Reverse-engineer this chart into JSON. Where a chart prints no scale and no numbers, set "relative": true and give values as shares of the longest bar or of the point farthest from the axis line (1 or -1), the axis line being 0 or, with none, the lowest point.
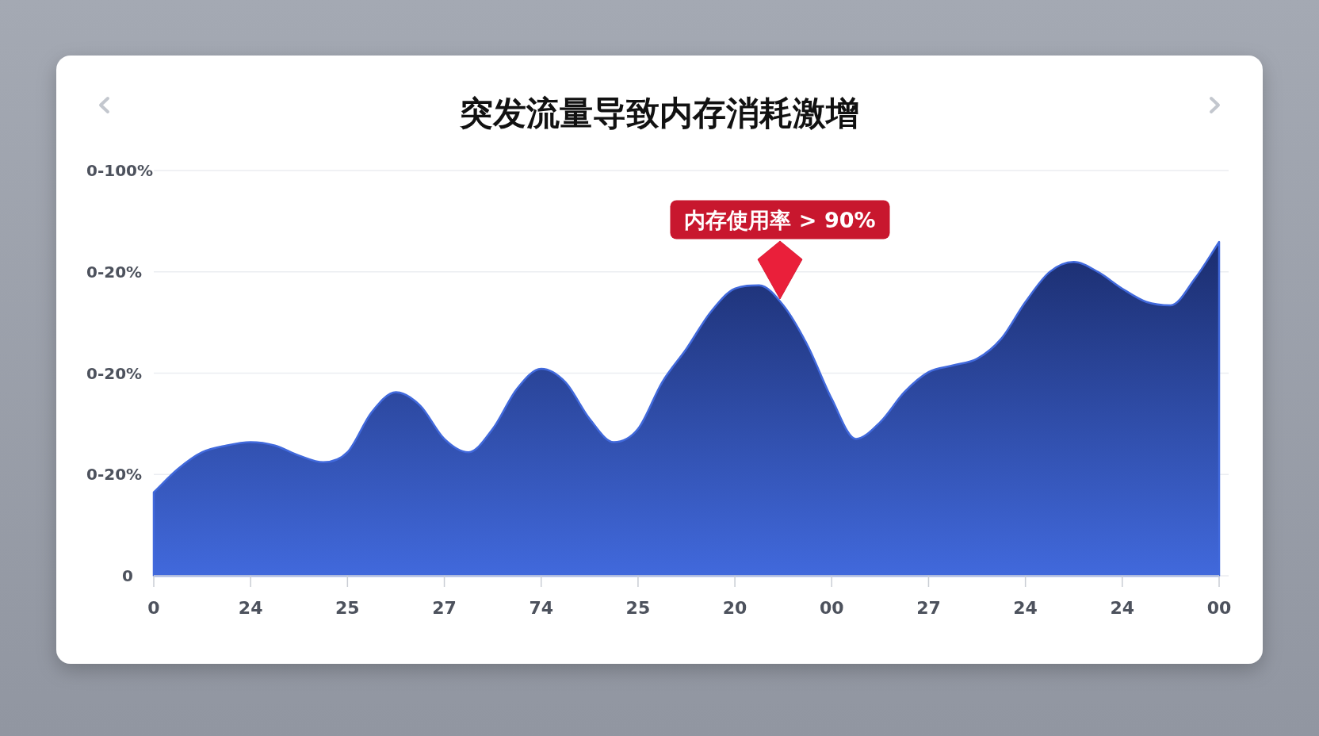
{
  "chart_data": {
    "type": "area",
    "title": "突发流量导致内存消耗激增",
    "relative": true,
    "categories": [
      "0",
      null,
      null,
      null,
      "24",
      null,
      null,
      null,
      "25",
      null,
      null,
      null,
      "27",
      null,
      null,
      null,
      "74",
      null,
      null,
      null,
      "25",
      null,
      null,
      null,
      "20",
      null,
      null,
      null,
      "00",
      null,
      null,
      null,
      "27",
      null,
      null,
      null,
      "24",
      null,
      null,
      null,
      "24",
      null,
      null,
      null,
      "00"
    ],
    "series": [
      {
        "color": "#4169dc",
        "values": [
          0.25,
          0.32,
          0.37,
          0.39,
          0.4,
          0.39,
          0.36,
          0.34,
          0.37,
          0.49,
          0.55,
          0.51,
          0.41,
          0.37,
          0.44,
          0.56,
          0.62,
          0.58,
          0.47,
          0.4,
          0.44,
          0.58,
          0.68,
          0.79,
          0.86,
          0.87,
          0.81,
          0.69,
          0.53,
          0.41,
          0.46,
          0.55,
          0.61,
          0.63,
          0.65,
          0.71,
          0.82,
          0.91,
          0.94,
          0.91,
          0.86,
          0.82,
          0.81,
          0.89,
          1
        ]
      }
    ],
    "annotations": [
      "0-100%",
      "0-20%",
      "0-20%",
      "0-20%",
      "0",
      "内存使用率 > 90%"
    ]
  }
}
